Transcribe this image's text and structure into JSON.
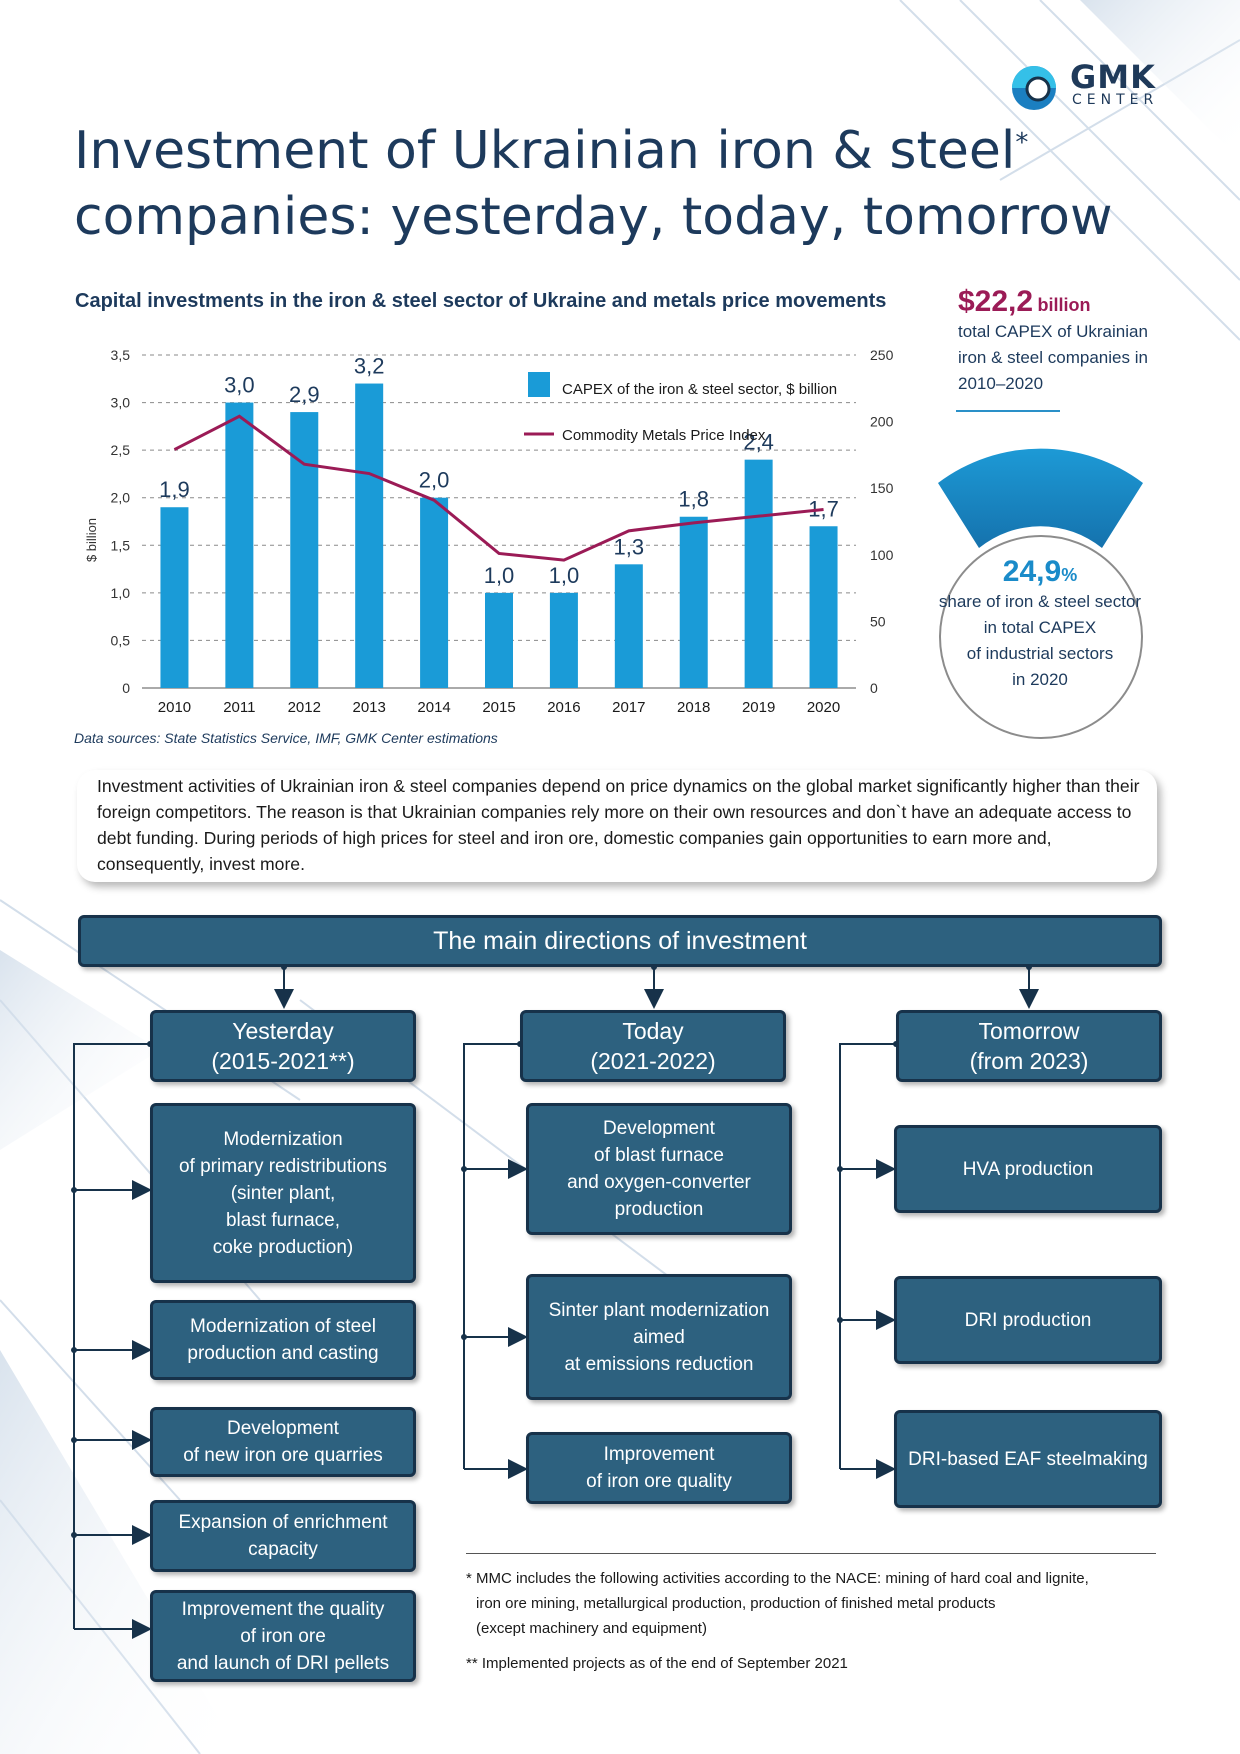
{
  "brand": {
    "name": "GMK",
    "sub": "CENTER"
  },
  "title": {
    "line1": "Investment of Ukrainian iron & steel",
    "marker": "*",
    "line2": "companies: yesterday, today, tomorrow"
  },
  "chart_data": {
    "type": "bar",
    "title": "Capital investments in the iron & steel sector of Ukraine and metals price movements",
    "categories": [
      "2010",
      "2011",
      "2012",
      "2013",
      "2014",
      "2015",
      "2016",
      "2017",
      "2018",
      "2019",
      "2020"
    ],
    "ylabel": "$ billion",
    "ylim": [
      0,
      3.5
    ],
    "y2lim": [
      0,
      250
    ],
    "y_ticks": [
      "0",
      "0,5",
      "1,0",
      "1,5",
      "2,0",
      "2,5",
      "3,0",
      "3,5"
    ],
    "y2_ticks": [
      "0",
      "50",
      "100",
      "150",
      "200",
      "250"
    ],
    "grid": true,
    "legend_placement": "top-right",
    "series": [
      {
        "name": "CAPEX of the iron & steel sector, $ billion",
        "type": "bar",
        "color": "#1a9bd7",
        "values": [
          1.9,
          3.0,
          2.9,
          3.2,
          2.0,
          1.0,
          1.0,
          1.3,
          1.8,
          2.4,
          1.7
        ],
        "labels": [
          "1,9",
          "3,0",
          "2,9",
          "3,2",
          "2,0",
          "1,0",
          "1,0",
          "1,3",
          "1,8",
          "2,4",
          "1,7"
        ]
      },
      {
        "name": "Commodity Metals Price Index",
        "type": "line",
        "axis": "right",
        "color": "#9b1b56",
        "values": [
          179,
          204,
          168,
          161,
          141,
          101,
          96,
          118,
          124,
          129,
          134
        ]
      }
    ]
  },
  "source": "Data sources: State Statistics Service, IMF, GMK Center estimations",
  "capex_total": {
    "value": "$22,2",
    "unit": "billion",
    "desc": "total CAPEX of Ukrainian iron & steel companies in 2010–2020"
  },
  "share": {
    "value": "24,9",
    "unit": "%",
    "desc_lines": [
      "share of iron & steel sector",
      "in total CAPEX",
      "of industrial sectors",
      "in 2020"
    ]
  },
  "intro": "Investment activities of Ukrainian iron & steel companies depend on price dynamics on the global market significantly higher than their foreign competitors. The reason is that Ukrainian companies rely more on their own resources and don`t have an adequate access to debt funding. During periods of high prices for steel and iron ore, domestic companies gain opportunities to earn more and, consequently, invest more.",
  "directions": {
    "title": "The main directions of investment",
    "yesterday": {
      "l1": "Yesterday",
      "l2": "(2015-2021**)",
      "items": [
        [
          "Modernization",
          "of primary redistributions",
          "(sinter plant,",
          "blast furnace,",
          "coke production)"
        ],
        [
          "Modernization of steel",
          "production and casting"
        ],
        [
          "Development",
          "of new iron ore quarries"
        ],
        [
          "Expansion of enrichment",
          "capacity"
        ],
        [
          "Improvement the quality",
          "of iron ore",
          "and launch of DRI pellets"
        ]
      ]
    },
    "today": {
      "l1": "Today",
      "l2": "(2021-2022)",
      "items": [
        [
          "Development",
          "of blast furnace",
          "and oxygen-converter",
          "production"
        ],
        [
          "Sinter plant modernization",
          "aimed",
          "at emissions reduction"
        ],
        [
          "Improvement",
          "of iron ore quality"
        ]
      ]
    },
    "tomorrow": {
      "l1": "Tomorrow",
      "l2": "(from 2023)",
      "items": [
        [
          "HVA production"
        ],
        [
          "DRI production"
        ],
        [
          "DRI-based EAF steelmaking"
        ]
      ]
    }
  },
  "footnotes": {
    "f1_lines": [
      "* MMC includes the following activities according to the NACE: mining of hard coal and lignite,",
      "iron ore mining, metallurgical production, production of finished metal products",
      "(except machinery and equipment)"
    ],
    "f2": "** Implemented projects as of the end of September 2021"
  }
}
